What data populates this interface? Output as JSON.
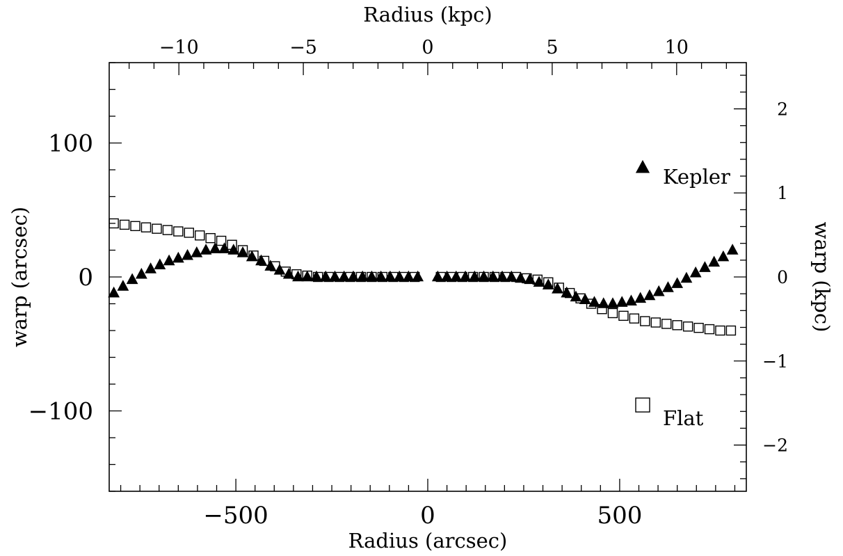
{
  "chart_data": {
    "type": "scatter",
    "xlabel": "Radius (arcsec)",
    "ylabel": "warp (arcsec)",
    "x2label": "Radius (kpc)",
    "y2label": "warp (kpc)",
    "xlim": [
      -830,
      830
    ],
    "ylim": [
      -160,
      160
    ],
    "x2lim": [
      -12.8,
      12.8
    ],
    "y2lim": [
      -2.55,
      2.55
    ],
    "xticks": [
      -500,
      0,
      500
    ],
    "xtick_labels": [
      "−500",
      "0",
      "500"
    ],
    "yticks": [
      -100,
      0,
      100
    ],
    "ytick_labels": [
      "−100",
      "0",
      "100"
    ],
    "x2ticks": [
      -10,
      -5,
      0,
      5,
      10
    ],
    "x2tick_labels": [
      "−10",
      "−5",
      "0",
      "5",
      "10"
    ],
    "y2ticks": [
      -2,
      -1,
      0,
      1,
      2
    ],
    "y2tick_labels": [
      "−2",
      "−1",
      "0",
      "1",
      "2"
    ],
    "grid": false,
    "legend_position": "right",
    "series": [
      {
        "name": "Kepler",
        "marker": "filled-triangle",
        "x": [
          -818,
          -794,
          -770,
          -746,
          -722,
          -698,
          -674,
          -650,
          -626,
          -602,
          -578,
          -554,
          -530,
          -506,
          -482,
          -458,
          -434,
          -410,
          -386,
          -362,
          -338,
          -314,
          -290,
          -266,
          -242,
          -218,
          -194,
          -170,
          -146,
          -122,
          -98,
          -74,
          -50,
          -26,
          26,
          50,
          74,
          98,
          122,
          146,
          170,
          194,
          218,
          242,
          266,
          290,
          314,
          338,
          362,
          386,
          410,
          434,
          458,
          482,
          506,
          530,
          554,
          578,
          602,
          626,
          650,
          674,
          698,
          722,
          746,
          770,
          794
        ],
        "y": [
          -12,
          -7,
          -2,
          2,
          6,
          9,
          12,
          14,
          16,
          18,
          20,
          21,
          21,
          20,
          18,
          15,
          12,
          8,
          5,
          2,
          0,
          0,
          0,
          0,
          0,
          0,
          0,
          0,
          0,
          0,
          0,
          0,
          0,
          0,
          0,
          0,
          0,
          0,
          0,
          0,
          0,
          0,
          0,
          -1,
          -2,
          -4,
          -6,
          -9,
          -12,
          -15,
          -17,
          -19,
          -20,
          -20,
          -19,
          -18,
          -16,
          -14,
          -11,
          -8,
          -5,
          -1,
          3,
          7,
          11,
          15,
          20
        ]
      },
      {
        "name": "Flat",
        "marker": "open-square",
        "x": [
          -818,
          -790,
          -762,
          -734,
          -706,
          -678,
          -650,
          -622,
          -594,
          -566,
          -538,
          -510,
          -482,
          -454,
          -426,
          -398,
          -370,
          -342,
          -314,
          -286,
          -258,
          -230,
          -202,
          -174,
          -146,
          -118,
          -90,
          -62,
          -34,
          34,
          62,
          90,
          118,
          146,
          174,
          202,
          230,
          258,
          286,
          314,
          342,
          370,
          398,
          426,
          454,
          482,
          510,
          538,
          566,
          594,
          622,
          650,
          678,
          706,
          734,
          762,
          790
        ],
        "y": [
          40,
          39,
          38,
          37,
          36,
          35,
          34,
          33,
          31,
          29,
          27,
          24,
          20,
          16,
          12,
          8,
          4,
          2,
          1,
          0,
          0,
          0,
          0,
          0,
          0,
          0,
          0,
          0,
          0,
          0,
          0,
          0,
          0,
          0,
          0,
          0,
          0,
          -1,
          -2,
          -4,
          -8,
          -12,
          -16,
          -20,
          -24,
          -27,
          -29,
          -31,
          -33,
          -34,
          -35,
          -36,
          -37,
          -38,
          -39,
          -40,
          -40
        ]
      }
    ]
  },
  "legend": {
    "items": [
      {
        "label": "Kepler",
        "marker": "filled-triangle"
      },
      {
        "label": "Flat",
        "marker": "open-square"
      }
    ]
  },
  "colors": {
    "ink": "#000000",
    "background": "#ffffff"
  }
}
